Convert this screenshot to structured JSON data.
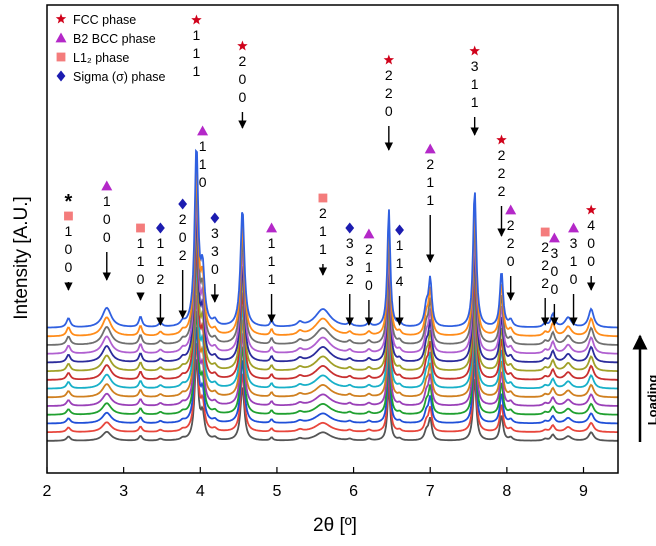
{
  "chart_data": {
    "type": "line",
    "xlabel": "2θ [º]",
    "ylabel": "Intensity [A.U.]",
    "xlim": [
      2,
      9.45
    ],
    "x_ticks": [
      "2",
      "3",
      "4",
      "5",
      "6",
      "7",
      "8",
      "9"
    ],
    "grid": false,
    "legend_position": "top-left",
    "legend": [
      {
        "label": "FCC phase",
        "marker": "star",
        "color": "#d0021b"
      },
      {
        "label": "B2 BCC phase",
        "marker": "triangle",
        "color": "#b428c8"
      },
      {
        "label": "L1₂ phase",
        "marker": "square",
        "color": "#f47c7c"
      },
      {
        "label": "Sigma (σ) phase",
        "marker": "diamond",
        "color": "#1c1cb0"
      }
    ],
    "loading_label": "Loading",
    "curve_colors": [
      "#555555",
      "#e8463c",
      "#2050d8",
      "#20a030",
      "#9a40b8",
      "#d08020",
      "#18b0c8",
      "#c83030",
      "#a0a028",
      "#2c2c9c",
      "#b060d0",
      "#707070",
      "#ff8c1a",
      "#3060e0"
    ],
    "peaks": [
      {
        "phase": "L12",
        "x": 2.28,
        "hkl": "100",
        "annotation": "*"
      },
      {
        "phase": "B2",
        "x": 2.78,
        "hkl": "100"
      },
      {
        "phase": "L12",
        "x": 3.22,
        "hkl": "110"
      },
      {
        "phase": "Sigma",
        "x": 3.48,
        "hkl": "112"
      },
      {
        "phase": "Sigma",
        "x": 3.77,
        "hkl": "202"
      },
      {
        "phase": "FCC",
        "x": 3.95,
        "hkl": "111"
      },
      {
        "phase": "B2",
        "x": 4.03,
        "hkl": "110"
      },
      {
        "phase": "Sigma",
        "x": 4.19,
        "hkl": "330"
      },
      {
        "phase": "FCC",
        "x": 4.55,
        "hkl": "200"
      },
      {
        "phase": "B2",
        "x": 4.93,
        "hkl": "111"
      },
      {
        "phase": "L12",
        "x": 5.6,
        "hkl": "211"
      },
      {
        "phase": "Sigma",
        "x": 5.95,
        "hkl": "332"
      },
      {
        "phase": "B2",
        "x": 6.2,
        "hkl": "210"
      },
      {
        "phase": "FCC",
        "x": 6.46,
        "hkl": "220"
      },
      {
        "phase": "Sigma",
        "x": 6.6,
        "hkl": "114"
      },
      {
        "phase": "B2",
        "x": 7.0,
        "hkl": "211"
      },
      {
        "phase": "FCC",
        "x": 7.58,
        "hkl": "311"
      },
      {
        "phase": "FCC",
        "x": 7.93,
        "hkl": "222"
      },
      {
        "phase": "B2",
        "x": 8.05,
        "hkl": "220"
      },
      {
        "phase": "L12",
        "x": 8.5,
        "hkl": "222"
      },
      {
        "phase": "B2",
        "x": 8.62,
        "hkl": "300"
      },
      {
        "phase": "B2",
        "x": 8.87,
        "hkl": "310"
      },
      {
        "phase": "FCC",
        "x": 9.1,
        "hkl": "400"
      }
    ]
  }
}
